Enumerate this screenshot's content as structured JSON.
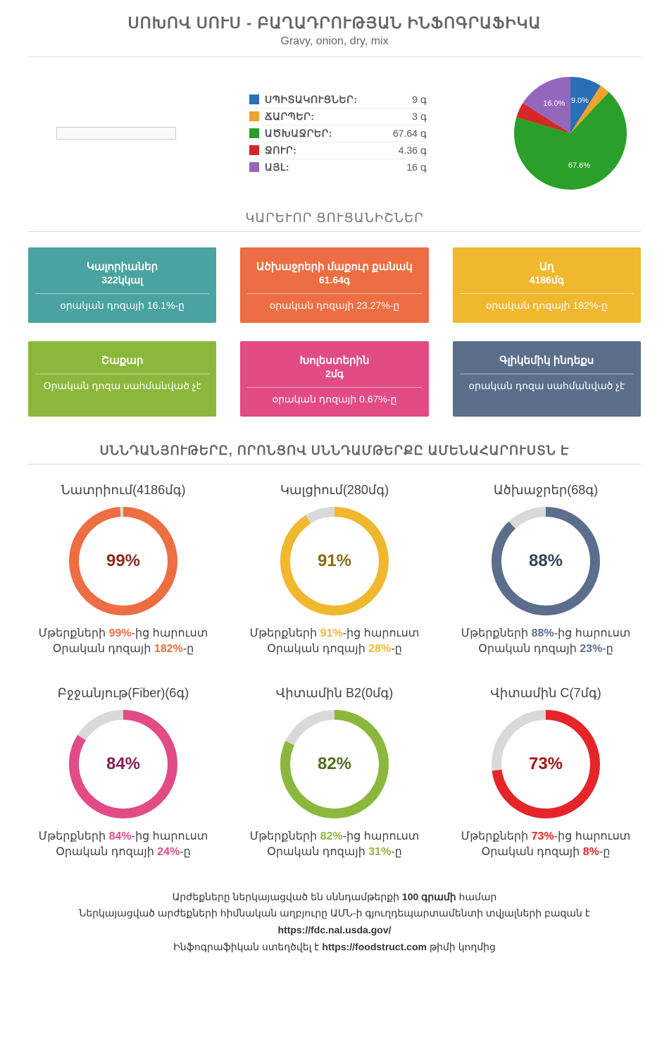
{
  "title": "ՍՈԽՈՎ ՍՈՒՍ - ԲԱՂԱԴՐՈՒԹՅԱՆ ԻՆՖՈԳՐԱՖԻԿԱ",
  "subtitle": "Gravy, onion, dry, mix",
  "macros": {
    "items": [
      {
        "name": "ՍՊԻՏԱԿՈՒՑՆԵՐ:",
        "value": "9 գ",
        "color": "#2a6fb6",
        "pct": 9.0,
        "labelPct": "9.0%"
      },
      {
        "name": "ՃԱՐՊԵՐ:",
        "value": "3 գ",
        "color": "#f0a22f",
        "pct": 3.0,
        "labelPct": ""
      },
      {
        "name": "ԱԾԽԱՋՐԵՐ:",
        "value": "67.64 գ",
        "color": "#2aa02a",
        "pct": 67.6,
        "labelPct": "67.6%"
      },
      {
        "name": "ՋՈՒՐ:",
        "value": "4.36 գ",
        "color": "#d62728",
        "pct": 4.4,
        "labelPct": ""
      },
      {
        "name": "ԱՅԼ:",
        "value": "16 գ",
        "color": "#9467bd",
        "pct": 16.0,
        "labelPct": "16.0%"
      }
    ]
  },
  "indicatorsTitle": "ԿԱՐԵՒՈՐ ՑՈՒՑԱՆԻՇՆԵՐ",
  "cards": [
    {
      "title": "Կալորիաներ",
      "value": "322կկալ",
      "sub": "օրական դոզայի 16.1%-ը",
      "bg": "#4aa3a0"
    },
    {
      "title": "Ածխաջրերի մաքուր քանակ",
      "value": "61.64գ",
      "sub": "օրական դոզայի 23.27%-ը",
      "bg": "#ec6e42"
    },
    {
      "title": "Աղ",
      "value": "4186մգ",
      "sub": "օրական դոզայի 182%-ը",
      "bg": "#f0b82e"
    },
    {
      "title": "Շաքար",
      "value": "",
      "sub": "Օրական դոզա սահմանված չէ",
      "bg": "#8bb83c"
    },
    {
      "title": "Խոլեստերին",
      "value": "2մգ",
      "sub": "օրական դոզայի 0.67%-ը",
      "bg": "#e24b86"
    },
    {
      "title": "Գլիկեմիկ ինդեքս",
      "value": "",
      "sub": "օրական դոզա սահմանված չէ",
      "bg": "#5b6e8c"
    }
  ],
  "richTitle": "ՍՆՆԴԱՆՅՈՒԹԵՐԸ, ՈՐՈՆՑՈՎ ՍՆՆԴԱՄԹԵՐՔԸ ԱՄԵՆԱՀԱՐՈՒՍՏՆ Է",
  "nutrients": [
    {
      "title": "Նատրիում(4186մգ)",
      "pct": 99,
      "daily": "182%",
      "color": "#ec6e42",
      "textColor": "#8b2b1c"
    },
    {
      "title": "Կալցիում(280մգ)",
      "pct": 91,
      "daily": "28%",
      "color": "#f0b82e",
      "textColor": "#8a6a13"
    },
    {
      "title": "Ածխաջրեր(68գ)",
      "pct": 88,
      "daily": "23%",
      "color": "#5b6e8c",
      "textColor": "#33425a"
    },
    {
      "title": "Բջջանյութ(Fiber)(6գ)",
      "pct": 84,
      "daily": "24%",
      "color": "#e24b86",
      "textColor": "#8b1d53"
    },
    {
      "title": "Վիտամին B2(0մգ)",
      "pct": 82,
      "daily": "31%",
      "color": "#8bb83c",
      "textColor": "#4e6e1d"
    },
    {
      "title": "Վիտամին C(7մգ)",
      "pct": 73,
      "daily": "8%",
      "color": "#e6252a",
      "textColor": "#a01217"
    }
  ],
  "nutrientLabels": {
    "prefix1": "Մթերքների ",
    "suffix1": "-ից հարուստ",
    "prefix2": "Օրական դոզայի ",
    "suffix2": "-ը"
  },
  "footer": {
    "line1a": "Արժեքները ներկայացված են սննդամթերքի ",
    "line1b": "100 գրամի",
    "line1c": " համար",
    "line2": "Ներկայացված արժեքների հիմնական աղբյուրը ԱՄՆ-ի գյուղդեպարտամենտի տվյալների բազան է",
    "line3": "https://fdc.nal.usda.gov/",
    "line4a": "Ինֆոգրաֆիկան ստեղծվել է ",
    "line4b": "https://foodstruct.com",
    "line4c": " թիմի կողմից"
  },
  "style": {
    "donutTrack": "#d9d9d9",
    "donutThickness": 14
  }
}
